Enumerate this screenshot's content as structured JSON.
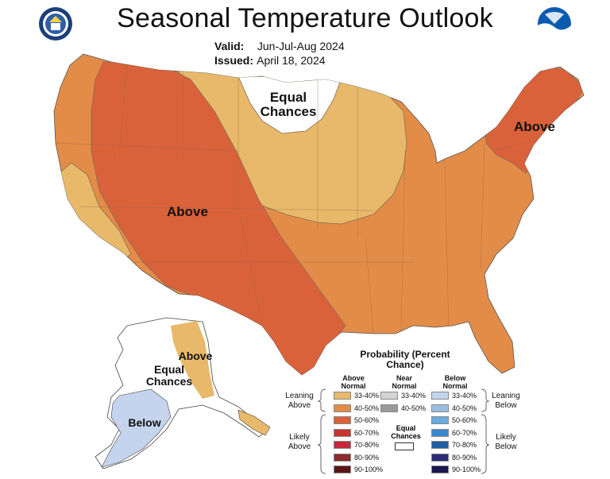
{
  "title": "Seasonal Temperature Outlook",
  "valid_label": "Valid:",
  "valid_value": "Jun-Jul-Aug 2024",
  "issued_label": "Issued:",
  "issued_value": "April 18, 2024",
  "map_labels": {
    "equal_chances_north": "Equal Chances",
    "above_west": "Above",
    "above_northeast": "Above",
    "above_alaska": "Above",
    "equal_chances_alaska": "Equal Chances",
    "below_alaska": "Below"
  },
  "legend": {
    "title": "Probability (Percent Chance)",
    "above_header": "Above Normal",
    "near_header": "Near Normal",
    "below_header": "Below Normal",
    "leaning_above": "Leaning Above",
    "likely_above": "Likely Above",
    "leaning_below": "Leaning Below",
    "likely_below": "Likely Below",
    "equal_chances": "Equal Chances",
    "above": [
      {
        "label": "33-40%",
        "color": "#e8b96a"
      },
      {
        "label": "40-50%",
        "color": "#e38c48"
      },
      {
        "label": "50-60%",
        "color": "#d9623a"
      },
      {
        "label": "60-70%",
        "color": "#c9342f"
      },
      {
        "label": "70-80%",
        "color": "#c8273e"
      },
      {
        "label": "80-90%",
        "color": "#8c2a2c"
      },
      {
        "label": "90-100%",
        "color": "#5a1616"
      }
    ],
    "near": [
      {
        "label": "33-40%",
        "color": "#d4d4d4"
      },
      {
        "label": "40-50%",
        "color": "#9a9a9a"
      }
    ],
    "below": [
      {
        "label": "33-40%",
        "color": "#c4d4ec"
      },
      {
        "label": "40-50%",
        "color": "#9bbde0"
      },
      {
        "label": "50-60%",
        "color": "#6aaae0"
      },
      {
        "label": "60-70%",
        "color": "#3987d0"
      },
      {
        "label": "70-80%",
        "color": "#1f5ea4"
      },
      {
        "label": "80-90%",
        "color": "#2b2a78"
      },
      {
        "label": "90-100%",
        "color": "#1c1450"
      }
    ]
  },
  "map_colors": {
    "above_33_40": "#e8b96a",
    "above_40_50": "#e38c48",
    "above_50_60": "#d9623a",
    "below_33_40": "#c4d4ec",
    "equal_chances": "#ffffff"
  }
}
